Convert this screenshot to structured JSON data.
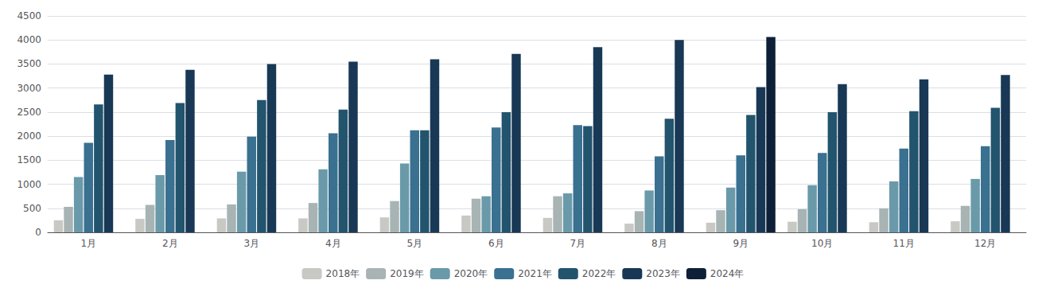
{
  "chart_data": {
    "type": "bar",
    "categories": [
      "1月",
      "2月",
      "3月",
      "4月",
      "5月",
      "6月",
      "7月",
      "8月",
      "9月",
      "10月",
      "11月",
      "12月"
    ],
    "series": [
      {
        "name": "2018年",
        "color": "#c8c8c4",
        "values": [
          250,
          280,
          290,
          290,
          310,
          350,
          300,
          180,
          200,
          220,
          210,
          230
        ]
      },
      {
        "name": "2019年",
        "color": "#a8b4b4",
        "values": [
          530,
          570,
          580,
          610,
          650,
          700,
          750,
          440,
          460,
          480,
          500,
          550
        ]
      },
      {
        "name": "2020年",
        "color": "#6a9aaa",
        "values": [
          1150,
          1190,
          1260,
          1310,
          1430,
          750,
          810,
          870,
          930,
          980,
          1060,
          1110
        ]
      },
      {
        "name": "2021年",
        "color": "#3a7090",
        "values": [
          1860,
          1920,
          1990,
          2060,
          2120,
          2180,
          2230,
          1580,
          1600,
          1650,
          1740,
          1790
        ]
      },
      {
        "name": "2022年",
        "color": "#22546e",
        "values": [
          2660,
          2690,
          2750,
          2550,
          2120,
          2500,
          2210,
          2360,
          2440,
          2500,
          2520,
          2590
        ]
      },
      {
        "name": "2023年",
        "color": "#183855",
        "values": [
          3280,
          3380,
          3500,
          3550,
          3600,
          3710,
          3850,
          4000,
          3020,
          3080,
          3180,
          3270
        ]
      },
      {
        "name": "2024年",
        "color": "#0d2038",
        "values": [
          null,
          null,
          null,
          null,
          null,
          null,
          null,
          null,
          4060,
          null,
          null,
          null
        ]
      }
    ],
    "ylim": [
      0,
      4500
    ],
    "yticks": [
      0,
      500,
      1000,
      1500,
      2000,
      2500,
      3000,
      3500,
      4000,
      4500
    ],
    "grid": true,
    "legend": "bottom"
  }
}
